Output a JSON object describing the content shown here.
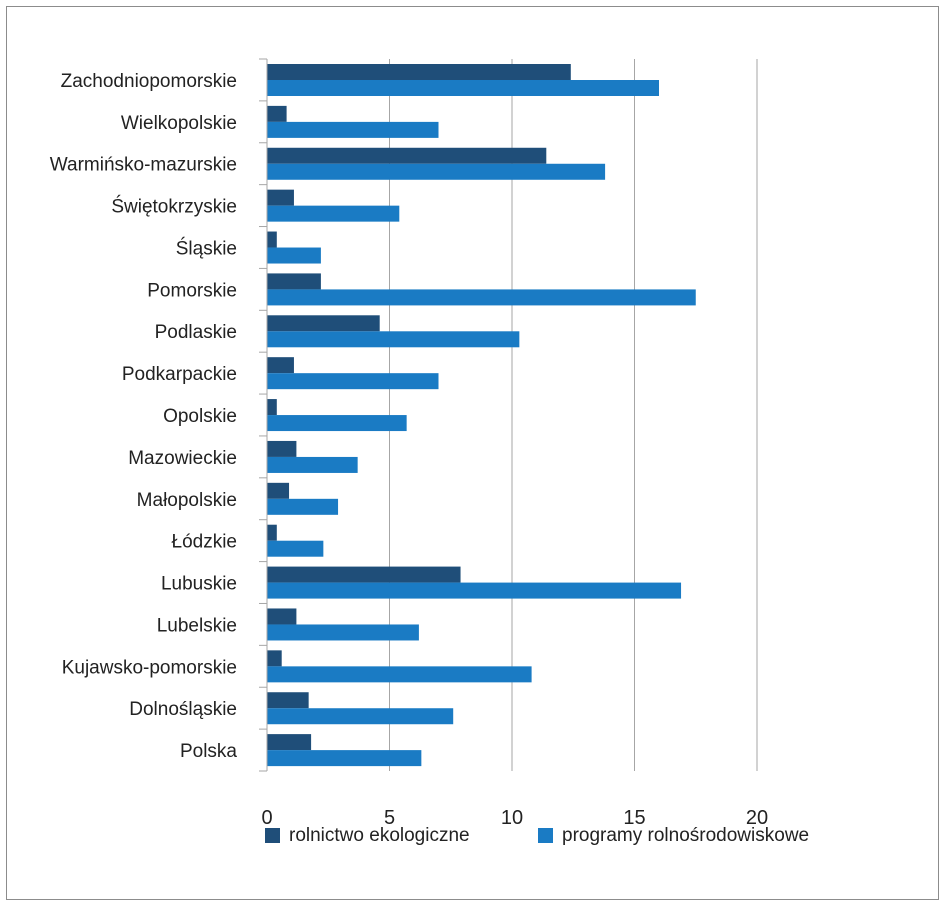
{
  "chart_data": {
    "type": "bar",
    "orientation": "horizontal",
    "categories": [
      "Zachodniopomorskie",
      "Wielkopolskie",
      "Warmińsko-mazurskie",
      "Świętokrzyskie",
      "Śląskie",
      "Pomorskie",
      "Podlaskie",
      "Podkarpackie",
      "Opolskie",
      "Mazowieckie",
      "Małopolskie",
      "Łódzkie",
      "Lubuskie",
      "Lubelskie",
      "Kujawsko-pomorskie",
      "Dolnośląskie",
      "Polska"
    ],
    "series": [
      {
        "name": "rolnictwo ekologiczne",
        "color": "#1f4e79",
        "values": [
          12.4,
          0.8,
          11.4,
          1.1,
          0.4,
          2.2,
          4.6,
          1.1,
          0.4,
          1.2,
          0.9,
          0.4,
          7.9,
          1.2,
          0.6,
          1.7,
          1.8
        ]
      },
      {
        "name": "programy rolnośrodowiskowe",
        "color": "#1a7bc4",
        "values": [
          16.0,
          7.0,
          13.8,
          5.4,
          2.2,
          17.5,
          10.3,
          7.0,
          5.7,
          3.7,
          2.9,
          2.3,
          16.9,
          6.2,
          10.8,
          7.6,
          6.3
        ]
      }
    ],
    "xticks": [
      "0",
      "5",
      "10",
      "15",
      "20"
    ],
    "xlim": [
      0,
      20
    ],
    "grid": true,
    "legend": "bottom"
  }
}
